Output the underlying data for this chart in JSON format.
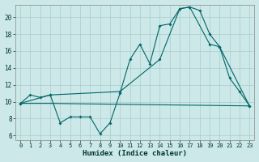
{
  "title": "",
  "xlabel": "Humidex (Indice chaleur)",
  "bg_color": "#cce8e8",
  "grid_color": "#aacccc",
  "line_color": "#006666",
  "xlim": [
    -0.5,
    23.5
  ],
  "ylim": [
    5.5,
    21.5
  ],
  "yticks": [
    6,
    8,
    10,
    12,
    14,
    16,
    18,
    20
  ],
  "xticks": [
    0,
    1,
    2,
    3,
    4,
    5,
    6,
    7,
    8,
    9,
    10,
    11,
    12,
    13,
    14,
    15,
    16,
    17,
    18,
    19,
    20,
    21,
    22,
    23
  ],
  "series1_x": [
    0,
    1,
    2,
    3,
    4,
    5,
    6,
    7,
    8,
    9,
    10,
    11,
    12,
    13,
    14,
    15,
    16,
    17,
    18,
    19,
    20,
    21,
    22,
    23
  ],
  "series1_y": [
    9.8,
    10.8,
    10.5,
    10.8,
    7.5,
    8.2,
    8.2,
    8.2,
    6.2,
    7.5,
    11.0,
    15.0,
    16.8,
    14.5,
    19.0,
    19.2,
    21.0,
    21.2,
    20.8,
    18.0,
    16.5,
    12.8,
    11.2,
    9.5
  ],
  "series2_x": [
    0,
    3,
    10,
    14,
    16,
    17,
    19,
    20,
    23
  ],
  "series2_y": [
    9.8,
    10.8,
    11.2,
    15.0,
    21.0,
    21.2,
    16.8,
    16.5,
    9.5
  ],
  "series3_x": [
    0,
    3,
    23
  ],
  "series3_y": [
    9.8,
    9.8,
    9.5
  ]
}
